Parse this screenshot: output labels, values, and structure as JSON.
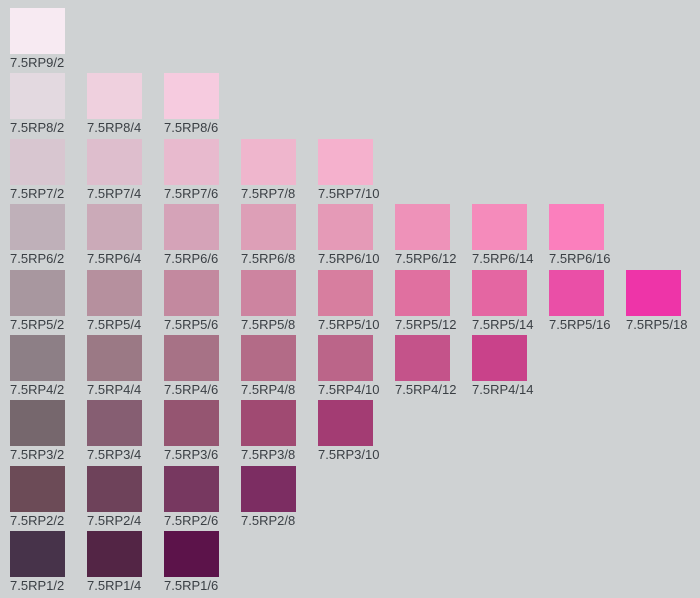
{
  "chart_data": {
    "type": "heatmap",
    "hue": "7.5RP",
    "axes": {
      "rows": "value",
      "columns": "chroma"
    },
    "rows": [
      {
        "value": 9,
        "chips": [
          {
            "label": "7.5RP9/2",
            "chroma": 2,
            "color": "#f7eaf2"
          }
        ]
      },
      {
        "value": 8,
        "chips": [
          {
            "label": "7.5RP8/2",
            "chroma": 2,
            "color": "#e3d9e0"
          },
          {
            "label": "7.5RP8/4",
            "chroma": 4,
            "color": "#efd0de"
          },
          {
            "label": "7.5RP8/6",
            "chroma": 6,
            "color": "#f6cbdf"
          }
        ]
      },
      {
        "value": 7,
        "chips": [
          {
            "label": "7.5RP7/2",
            "chroma": 2,
            "color": "#d8c6d0"
          },
          {
            "label": "7.5RP7/4",
            "chroma": 4,
            "color": "#debecd"
          },
          {
            "label": "7.5RP7/6",
            "chroma": 6,
            "color": "#e8bace"
          },
          {
            "label": "7.5RP7/8",
            "chroma": 8,
            "color": "#efb6cd"
          },
          {
            "label": "7.5RP7/10",
            "chroma": 10,
            "color": "#f5b1cd"
          }
        ]
      },
      {
        "value": 6,
        "chips": [
          {
            "label": "7.5RP6/2",
            "chroma": 2,
            "color": "#bfb0b9"
          },
          {
            "label": "7.5RP6/4",
            "chroma": 4,
            "color": "#cbaab8"
          },
          {
            "label": "7.5RP6/6",
            "chroma": 6,
            "color": "#d5a3b8"
          },
          {
            "label": "7.5RP6/8",
            "chroma": 8,
            "color": "#dd9fb7"
          },
          {
            "label": "7.5RP6/10",
            "chroma": 10,
            "color": "#e59ab7"
          },
          {
            "label": "7.5RP6/12",
            "chroma": 12,
            "color": "#ee92b9"
          },
          {
            "label": "7.5RP6/14",
            "chroma": 14,
            "color": "#f58bbb"
          },
          {
            "label": "7.5RP6/16",
            "chroma": 16,
            "color": "#fb7fbd"
          }
        ]
      },
      {
        "value": 5,
        "chips": [
          {
            "label": "7.5RP5/2",
            "chroma": 2,
            "color": "#a8979f"
          },
          {
            "label": "7.5RP5/4",
            "chroma": 4,
            "color": "#b6909e"
          },
          {
            "label": "7.5RP5/6",
            "chroma": 6,
            "color": "#c3899f"
          },
          {
            "label": "7.5RP5/8",
            "chroma": 8,
            "color": "#cd84a0"
          },
          {
            "label": "7.5RP5/10",
            "chroma": 10,
            "color": "#d77e9f"
          },
          {
            "label": "7.5RP5/12",
            "chroma": 12,
            "color": "#e070a0"
          },
          {
            "label": "7.5RP5/14",
            "chroma": 14,
            "color": "#e466a2"
          },
          {
            "label": "7.5RP5/16",
            "chroma": 16,
            "color": "#ea4fa7"
          },
          {
            "label": "7.5RP5/18",
            "chroma": 18,
            "color": "#ee34a8"
          }
        ]
      },
      {
        "value": 4,
        "chips": [
          {
            "label": "7.5RP4/2",
            "chroma": 2,
            "color": "#8d7f86"
          },
          {
            "label": "7.5RP4/4",
            "chroma": 4,
            "color": "#9b7985"
          },
          {
            "label": "7.5RP4/6",
            "chroma": 6,
            "color": "#a77286"
          },
          {
            "label": "7.5RP4/8",
            "chroma": 8,
            "color": "#b36b87"
          },
          {
            "label": "7.5RP4/10",
            "chroma": 10,
            "color": "#bb6589"
          },
          {
            "label": "7.5RP4/12",
            "chroma": 12,
            "color": "#c4538a"
          },
          {
            "label": "7.5RP4/14",
            "chroma": 14,
            "color": "#c9428a"
          }
        ]
      },
      {
        "value": 3,
        "chips": [
          {
            "label": "7.5RP3/2",
            "chroma": 2,
            "color": "#76676d"
          },
          {
            "label": "7.5RP3/4",
            "chroma": 4,
            "color": "#865e72"
          },
          {
            "label": "7.5RP3/6",
            "chroma": 6,
            "color": "#955571"
          },
          {
            "label": "7.5RP3/8",
            "chroma": 8,
            "color": "#a04a72"
          },
          {
            "label": "7.5RP3/10",
            "chroma": 10,
            "color": "#a33c73"
          }
        ]
      },
      {
        "value": 2,
        "chips": [
          {
            "label": "7.5RP2/2",
            "chroma": 2,
            "color": "#6c4b57"
          },
          {
            "label": "7.5RP2/4",
            "chroma": 4,
            "color": "#6e425a"
          },
          {
            "label": "7.5RP2/6",
            "chroma": 6,
            "color": "#773860"
          },
          {
            "label": "7.5RP2/8",
            "chroma": 8,
            "color": "#7c2d62"
          }
        ]
      },
      {
        "value": 1,
        "chips": [
          {
            "label": "7.5RP1/2",
            "chroma": 2,
            "color": "#47334a"
          },
          {
            "label": "7.5RP1/4",
            "chroma": 4,
            "color": "#532545"
          },
          {
            "label": "7.5RP1/6",
            "chroma": 6,
            "color": "#5c134a"
          }
        ]
      }
    ]
  }
}
